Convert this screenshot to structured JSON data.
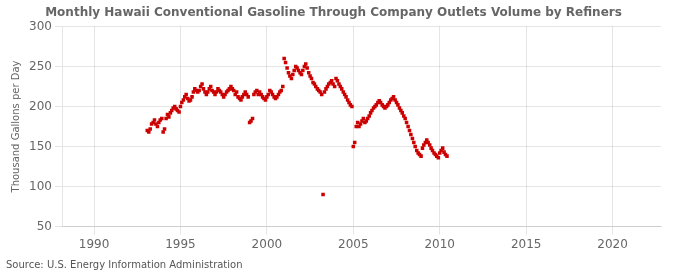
{
  "chart_data": {
    "type": "scatter",
    "title": "Monthly Hawaii Conventional Gasoline Through Company Outlets Volume by Refiners",
    "ylabel": "Thousand Gallons per Day",
    "source": "Source: U.S. Energy Information Administration",
    "color": "#CC0000",
    "marker": "square",
    "grid": true,
    "ylim": [
      50,
      300
    ],
    "yticks": [
      50,
      100,
      150,
      200,
      250,
      300
    ],
    "xlim": [
      1988.2,
      2022.8
    ],
    "xticks": [
      1990,
      1995,
      2000,
      2005,
      2010,
      2015,
      2020
    ],
    "x": [
      1993.08,
      1993.17,
      1993.25,
      1993.33,
      1993.42,
      1993.5,
      1993.58,
      1993.67,
      1993.75,
      1993.83,
      1993.92,
      1994.0,
      1994.08,
      1994.17,
      1994.25,
      1994.33,
      1994.42,
      1994.5,
      1994.58,
      1994.67,
      1994.75,
      1994.83,
      1994.92,
      1995.0,
      1995.08,
      1995.17,
      1995.25,
      1995.33,
      1995.42,
      1995.5,
      1995.58,
      1995.67,
      1995.75,
      1995.83,
      1995.92,
      1996.0,
      1996.08,
      1996.17,
      1996.25,
      1996.33,
      1996.42,
      1996.5,
      1996.58,
      1996.67,
      1996.75,
      1996.83,
      1996.92,
      1997.0,
      1997.08,
      1997.17,
      1997.25,
      1997.33,
      1997.42,
      1997.5,
      1997.58,
      1997.67,
      1997.75,
      1997.83,
      1997.92,
      1998.0,
      1998.08,
      1998.17,
      1998.25,
      1998.33,
      1998.42,
      1998.5,
      1998.58,
      1998.67,
      1998.75,
      1998.83,
      1998.92,
      1999.0,
      1999.08,
      1999.17,
      1999.25,
      1999.33,
      1999.42,
      1999.5,
      1999.58,
      1999.67,
      1999.75,
      1999.83,
      1999.92,
      2000.0,
      2000.08,
      2000.17,
      2000.25,
      2000.33,
      2000.42,
      2000.5,
      2000.58,
      2000.67,
      2000.75,
      2000.83,
      2000.92,
      2001.0,
      2001.08,
      2001.17,
      2001.25,
      2001.33,
      2001.42,
      2001.5,
      2001.58,
      2001.67,
      2001.75,
      2001.83,
      2001.92,
      2002.0,
      2002.08,
      2002.17,
      2002.25,
      2002.33,
      2002.42,
      2002.5,
      2002.58,
      2002.67,
      2002.75,
      2002.83,
      2002.92,
      2003.0,
      2003.08,
      2003.17,
      2003.25,
      2003.33,
      2003.42,
      2003.5,
      2003.58,
      2003.67,
      2003.75,
      2003.83,
      2003.92,
      2004.0,
      2004.08,
      2004.17,
      2004.25,
      2004.33,
      2004.42,
      2004.5,
      2004.58,
      2004.67,
      2004.75,
      2004.83,
      2004.92,
      2005.0,
      2005.08,
      2005.17,
      2005.25,
      2005.33,
      2005.42,
      2005.5,
      2005.58,
      2005.67,
      2005.75,
      2005.83,
      2005.92,
      2006.0,
      2006.08,
      2006.17,
      2006.25,
      2006.33,
      2006.42,
      2006.5,
      2006.58,
      2006.67,
      2006.75,
      2006.83,
      2006.92,
      2007.0,
      2007.08,
      2007.17,
      2007.25,
      2007.33,
      2007.42,
      2007.5,
      2007.58,
      2007.67,
      2007.75,
      2007.83,
      2007.92,
      2008.0,
      2008.08,
      2008.17,
      2008.25,
      2008.33,
      2008.42,
      2008.5,
      2008.58,
      2008.67,
      2008.75,
      2008.83,
      2008.92,
      2009.0,
      2009.08,
      2009.17,
      2009.25,
      2009.33,
      2009.42,
      2009.5,
      2009.58,
      2009.67,
      2009.75,
      2009.83,
      2009.92,
      2010.0,
      2010.08,
      2010.17,
      2010.25,
      2010.33,
      2010.42
    ],
    "values": [
      170,
      168,
      172,
      178,
      180,
      183,
      178,
      175,
      180,
      183,
      185,
      168,
      172,
      185,
      190,
      187,
      192,
      195,
      198,
      200,
      197,
      195,
      193,
      200,
      205,
      208,
      212,
      215,
      210,
      207,
      208,
      212,
      218,
      222,
      220,
      218,
      220,
      225,
      228,
      222,
      218,
      215,
      218,
      222,
      225,
      220,
      218,
      215,
      218,
      222,
      220,
      218,
      215,
      212,
      215,
      218,
      220,
      222,
      225,
      222,
      220,
      215,
      218,
      212,
      210,
      208,
      212,
      215,
      218,
      215,
      212,
      180,
      182,
      185,
      215,
      218,
      220,
      215,
      218,
      215,
      212,
      210,
      208,
      212,
      215,
      220,
      218,
      215,
      212,
      210,
      212,
      215,
      218,
      220,
      225,
      260,
      255,
      248,
      242,
      238,
      235,
      240,
      245,
      250,
      248,
      245,
      242,
      240,
      245,
      250,
      253,
      248,
      242,
      238,
      235,
      230,
      228,
      225,
      222,
      220,
      218,
      215,
      90,
      218,
      222,
      225,
      228,
      230,
      232,
      228,
      225,
      235,
      232,
      228,
      225,
      222,
      218,
      215,
      212,
      208,
      205,
      202,
      200,
      150,
      155,
      175,
      180,
      175,
      178,
      182,
      185,
      180,
      182,
      185,
      188,
      192,
      195,
      198,
      200,
      202,
      205,
      207,
      205,
      202,
      200,
      198,
      200,
      202,
      205,
      208,
      210,
      212,
      208,
      205,
      202,
      198,
      195,
      192,
      188,
      185,
      180,
      175,
      170,
      165,
      160,
      155,
      150,
      145,
      142,
      140,
      138,
      148,
      152,
      155,
      158,
      155,
      152,
      148,
      145,
      142,
      140,
      138,
      136,
      142,
      145,
      148,
      143,
      140,
      138
    ]
  }
}
